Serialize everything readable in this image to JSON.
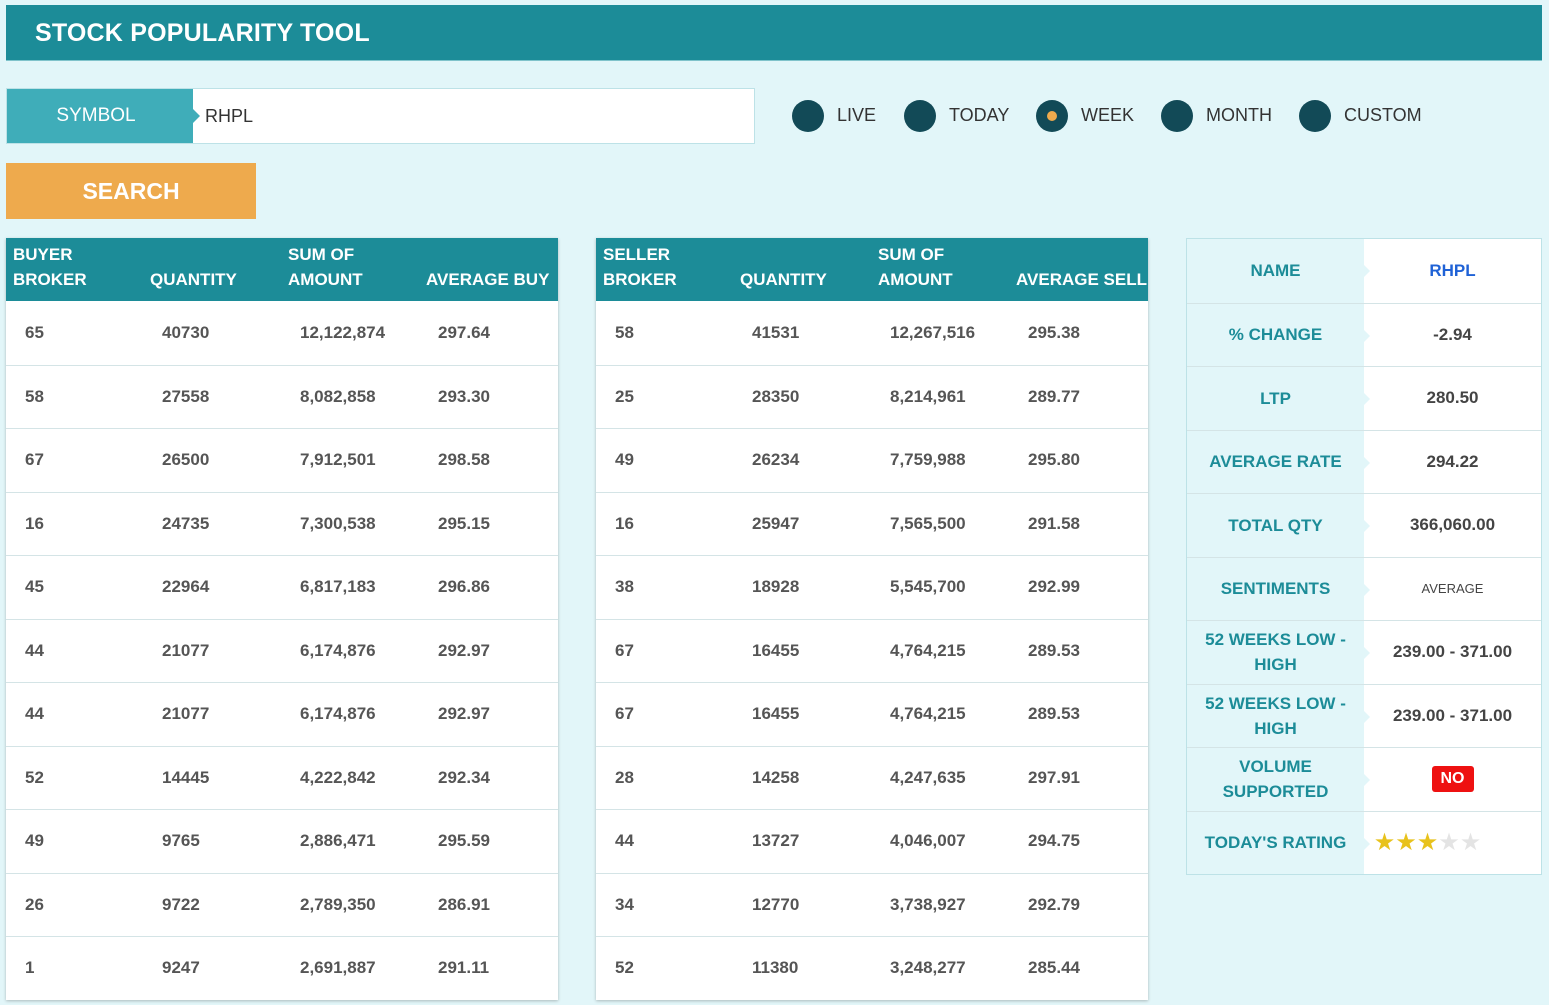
{
  "app": {
    "title": "STOCK POPULARITY TOOL"
  },
  "search": {
    "symbol_label": "SYMBOL",
    "symbol_value": "RHPL",
    "button_label": "SEARCH"
  },
  "periods": [
    {
      "label": "LIVE",
      "selected": false
    },
    {
      "label": "TODAY",
      "selected": false
    },
    {
      "label": "WEEK",
      "selected": true
    },
    {
      "label": "MONTH",
      "selected": false
    },
    {
      "label": "CUSTOM",
      "selected": false
    }
  ],
  "buyers": {
    "headers": [
      "BUYER BROKER",
      "QUANTITY",
      "SUM OF AMOUNT",
      "AVERAGE BUY"
    ],
    "rows": [
      [
        "65",
        "40730",
        "12,122,874",
        "297.64"
      ],
      [
        "58",
        "27558",
        "8,082,858",
        "293.30"
      ],
      [
        "67",
        "26500",
        "7,912,501",
        "298.58"
      ],
      [
        "16",
        "24735",
        "7,300,538",
        "295.15"
      ],
      [
        "45",
        "22964",
        "6,817,183",
        "296.86"
      ],
      [
        "44",
        "21077",
        "6,174,876",
        "292.97"
      ],
      [
        "44",
        "21077",
        "6,174,876",
        "292.97"
      ],
      [
        "52",
        "14445",
        "4,222,842",
        "292.34"
      ],
      [
        "49",
        "9765",
        "2,886,471",
        "295.59"
      ],
      [
        "26",
        "9722",
        "2,789,350",
        "286.91"
      ],
      [
        "1",
        "9247",
        "2,691,887",
        "291.11"
      ]
    ]
  },
  "sellers": {
    "headers": [
      "SELLER BROKER",
      "QUANTITY",
      "SUM OF AMOUNT",
      "AVERAGE SELL"
    ],
    "rows": [
      [
        "58",
        "41531",
        "12,267,516",
        "295.38"
      ],
      [
        "25",
        "28350",
        "8,214,961",
        "289.77"
      ],
      [
        "49",
        "26234",
        "7,759,988",
        "295.80"
      ],
      [
        "16",
        "25947",
        "7,565,500",
        "291.58"
      ],
      [
        "38",
        "18928",
        "5,545,700",
        "292.99"
      ],
      [
        "67",
        "16455",
        "4,764,215",
        "289.53"
      ],
      [
        "67",
        "16455",
        "4,764,215",
        "289.53"
      ],
      [
        "28",
        "14258",
        "4,247,635",
        "297.91"
      ],
      [
        "44",
        "13727",
        "4,046,007",
        "294.75"
      ],
      [
        "34",
        "12770",
        "3,738,927",
        "292.79"
      ],
      [
        "52",
        "11380",
        "3,248,277",
        "285.44"
      ]
    ]
  },
  "info": [
    {
      "key": "NAME",
      "value": "RHPL",
      "style": "link"
    },
    {
      "key": "% CHANGE",
      "value": "-2.94"
    },
    {
      "key": "LTP",
      "value": "280.50"
    },
    {
      "key": "AVERAGE RATE",
      "value": "294.22"
    },
    {
      "key": "TOTAL QTY",
      "value": "366,060.00"
    },
    {
      "key": "SENTIMENTS",
      "value": "AVERAGE",
      "style": "small"
    },
    {
      "key": "52 WEEKS LOW - HIGH",
      "value": "239.00 - 371.00"
    },
    {
      "key": "52 WEEKS LOW - HIGH",
      "value": "239.00 - 371.00"
    },
    {
      "key": "VOLUME SUPPORTED",
      "value": "NO",
      "style": "badge"
    },
    {
      "key": "TODAY'S RATING",
      "rating": 3,
      "rating_max": 5,
      "style": "stars"
    }
  ],
  "colors": {
    "primary": "#1c8c98",
    "accent": "#eeaa4d",
    "background": "#e2f6f9",
    "radio": "#124a57",
    "badge": "#ee1111"
  }
}
